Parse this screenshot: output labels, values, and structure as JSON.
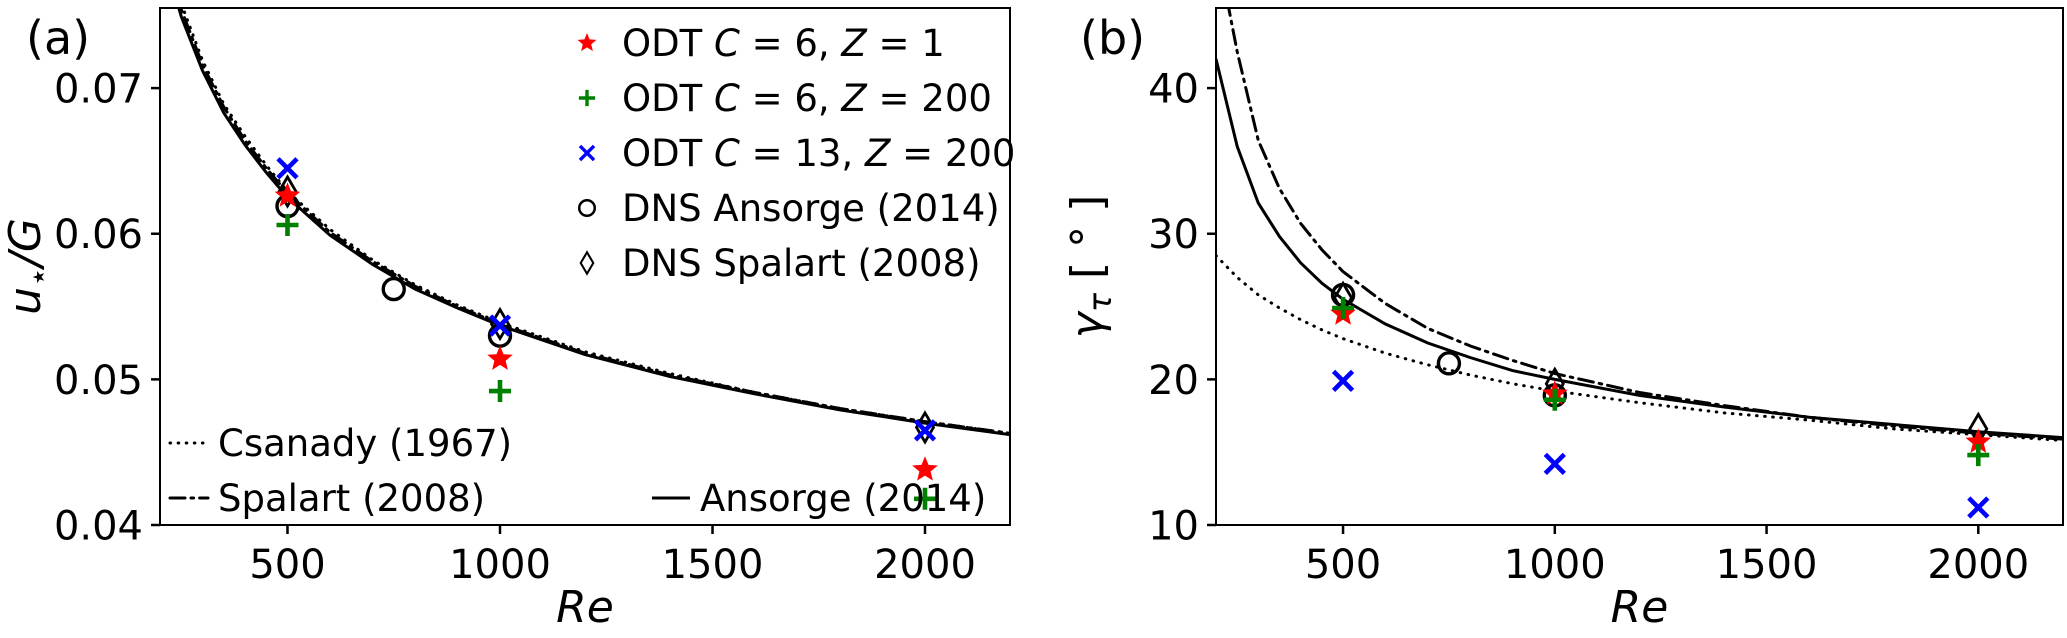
{
  "figure": {
    "background": "#ffffff",
    "panel_tags": {
      "a": "(a)",
      "b": "(b)"
    }
  },
  "colors": {
    "red": "#ff0000",
    "green": "#008000",
    "blue": "#0000ff",
    "black": "#000000"
  },
  "chart_data": [
    {
      "type": "scatter",
      "tag": "(a)",
      "xlabel": "Re",
      "xlabel_parts": [
        [
          "Re",
          "i"
        ]
      ],
      "ylabel": "u⋆/G",
      "ylabel_parts": [
        [
          "u",
          "i"
        ],
        [
          "⋆",
          "sub"
        ],
        [
          "/G",
          "i"
        ]
      ],
      "xlim": [
        200,
        2200
      ],
      "ylim": [
        0.04,
        0.0755
      ],
      "xticks": [
        [
          500,
          "500"
        ],
        [
          1000,
          "1000"
        ],
        [
          1500,
          "1500"
        ],
        [
          2000,
          "2000"
        ]
      ],
      "yticks": [
        [
          0.04,
          "0.04"
        ],
        [
          0.05,
          "0.05"
        ],
        [
          0.06,
          "0.06"
        ],
        [
          0.07,
          "0.07"
        ]
      ],
      "grid": false,
      "legend_series_position": "upper right",
      "legend_lines_position": "lower left",
      "lines": [
        {
          "label": "Csanady (1967)",
          "label_parts": [
            [
              "Csanady (1967)",
              "n"
            ]
          ],
          "style": "dotted",
          "color": "#000000",
          "points": [
            [
              200,
              0.0811
            ],
            [
              250,
              0.0758
            ],
            [
              300,
              0.0719
            ],
            [
              350,
              0.0689
            ],
            [
              400,
              0.0667
            ],
            [
              450,
              0.0647
            ],
            [
              500,
              0.0629
            ],
            [
              600,
              0.0603
            ],
            [
              700,
              0.0582
            ],
            [
              800,
              0.0565
            ],
            [
              900,
              0.0551
            ],
            [
              1000,
              0.0539
            ],
            [
              1200,
              0.0519
            ],
            [
              1400,
              0.0504
            ],
            [
              1600,
              0.0491
            ],
            [
              1800,
              0.048
            ],
            [
              2000,
              0.0471
            ],
            [
              2200,
              0.0463
            ]
          ]
        },
        {
          "label": "Spalart (2008)",
          "label_parts": [
            [
              "Spalart (2008)",
              "n"
            ]
          ],
          "style": "dashdot",
          "color": "#000000",
          "points": [
            [
              200,
              0.0807
            ],
            [
              250,
              0.0754
            ],
            [
              300,
              0.0716
            ],
            [
              350,
              0.0687
            ],
            [
              400,
              0.0664
            ],
            [
              450,
              0.0645
            ],
            [
              500,
              0.0628
            ],
            [
              600,
              0.0601
            ],
            [
              700,
              0.0581
            ],
            [
              800,
              0.0564
            ],
            [
              900,
              0.055
            ],
            [
              1000,
              0.0538
            ],
            [
              1200,
              0.0518
            ],
            [
              1400,
              0.0503
            ],
            [
              1600,
              0.0491
            ],
            [
              1800,
              0.048
            ],
            [
              2000,
              0.0471
            ],
            [
              2200,
              0.0463
            ]
          ]
        },
        {
          "label": "Ansorge (2014)",
          "label_parts": [
            [
              "Ansorge (2014)",
              "n"
            ]
          ],
          "style": "solid",
          "color": "#000000",
          "points": [
            [
              200,
              0.08
            ],
            [
              250,
              0.0749
            ],
            [
              300,
              0.0712
            ],
            [
              350,
              0.0683
            ],
            [
              400,
              0.0661
            ],
            [
              450,
              0.0642
            ],
            [
              500,
              0.0625
            ],
            [
              600,
              0.0599
            ],
            [
              700,
              0.0579
            ],
            [
              800,
              0.0562
            ],
            [
              900,
              0.0549
            ],
            [
              1000,
              0.0537
            ],
            [
              1200,
              0.0517
            ],
            [
              1400,
              0.0502
            ],
            [
              1600,
              0.049
            ],
            [
              1800,
              0.0479
            ],
            [
              2000,
              0.047
            ],
            [
              2200,
              0.0462
            ]
          ]
        }
      ],
      "series": [
        {
          "label": "ODT C = 6, Z = 1",
          "label_parts": [
            [
              "ODT ",
              "n"
            ],
            [
              "C",
              "i"
            ],
            [
              " = 6, ",
              "n"
            ],
            [
              "Z",
              "i"
            ],
            [
              " = 1",
              "n"
            ]
          ],
          "marker": "star",
          "color": "#ff0000",
          "zorder": 3,
          "points": [
            [
              500,
              0.0626
            ],
            [
              1000,
              0.0514
            ],
            [
              2000,
              0.0438
            ]
          ]
        },
        {
          "label": "ODT C = 6, Z = 200",
          "label_parts": [
            [
              "ODT ",
              "n"
            ],
            [
              "C",
              "i"
            ],
            [
              " = 6, ",
              "n"
            ],
            [
              "Z",
              "i"
            ],
            [
              " = 200",
              "n"
            ]
          ],
          "marker": "plus",
          "color": "#008000",
          "zorder": 4,
          "points": [
            [
              500,
              0.0606
            ],
            [
              1000,
              0.0492
            ],
            [
              2000,
              0.0418
            ]
          ]
        },
        {
          "label": "ODT C = 13, Z = 200",
          "label_parts": [
            [
              "ODT ",
              "n"
            ],
            [
              "C",
              "i"
            ],
            [
              " = 13, ",
              "n"
            ],
            [
              "Z",
              "i"
            ],
            [
              " = 200",
              "n"
            ]
          ],
          "marker": "x",
          "color": "#0000ff",
          "zorder": 5,
          "points": [
            [
              500,
              0.0645
            ],
            [
              1000,
              0.0537
            ],
            [
              2000,
              0.0465
            ]
          ]
        },
        {
          "label": "DNS Ansorge (2014)",
          "label_parts": [
            [
              "DNS Ansorge (2014)",
              "n"
            ]
          ],
          "marker": "circle",
          "color": "#000000",
          "zorder": 1,
          "points": [
            [
              500,
              0.0619
            ],
            [
              750,
              0.0562
            ],
            [
              1000,
              0.053
            ]
          ]
        },
        {
          "label": "DNS Spalart (2008)",
          "label_parts": [
            [
              "DNS Spalart (2008)",
              "n"
            ]
          ],
          "marker": "diamond",
          "color": "#000000",
          "zorder": 2,
          "points": [
            [
              500,
              0.0629
            ],
            [
              1000,
              0.0538
            ],
            [
              2000,
              0.0467
            ]
          ]
        }
      ]
    },
    {
      "type": "scatter",
      "tag": "(b)",
      "xlabel": "Re",
      "xlabel_parts": [
        [
          "Re",
          "i"
        ]
      ],
      "ylabel": "γτ [ ° ]",
      "ylabel_parts": [
        [
          "γ",
          "i"
        ],
        [
          "τ",
          "isub"
        ],
        [
          " [ ° ]",
          "n"
        ]
      ],
      "xlim": [
        200,
        2200
      ],
      "ylim": [
        10,
        45.5
      ],
      "xticks": [
        [
          500,
          "500"
        ],
        [
          1000,
          "1000"
        ],
        [
          1500,
          "1500"
        ],
        [
          2000,
          "2000"
        ]
      ],
      "yticks": [
        [
          10,
          "10"
        ],
        [
          20,
          "20"
        ],
        [
          30,
          "30"
        ],
        [
          40,
          "40"
        ]
      ],
      "grid": false,
      "legend_series_position": "none",
      "legend_lines_position": "none",
      "lines": [
        {
          "label": "Csanady (1967)",
          "label_parts": [
            [
              "Csanady (1967)",
              "n"
            ]
          ],
          "style": "dotted",
          "color": "#000000",
          "points": [
            [
              200,
              28.5
            ],
            [
              250,
              27.0
            ],
            [
              300,
              25.8
            ],
            [
              350,
              24.9
            ],
            [
              400,
              24.1
            ],
            [
              450,
              23.4
            ],
            [
              500,
              22.8
            ],
            [
              600,
              21.8
            ],
            [
              700,
              21.0
            ],
            [
              800,
              20.3
            ],
            [
              900,
              19.7
            ],
            [
              1000,
              19.2
            ],
            [
              1200,
              18.4
            ],
            [
              1400,
              17.7
            ],
            [
              1600,
              17.2
            ],
            [
              1800,
              16.6
            ],
            [
              2000,
              16.2
            ],
            [
              2200,
              15.8
            ]
          ]
        },
        {
          "label": "Spalart (2008)",
          "label_parts": [
            [
              "Spalart (2008)",
              "n"
            ]
          ],
          "style": "dashdot",
          "color": "#000000",
          "points": [
            [
              200,
              50.0
            ],
            [
              250,
              42.5
            ],
            [
              300,
              36.4
            ],
            [
              350,
              33.1
            ],
            [
              400,
              30.7
            ],
            [
              450,
              28.9
            ],
            [
              500,
              27.4
            ],
            [
              600,
              25.2
            ],
            [
              700,
              23.5
            ],
            [
              800,
              22.3
            ],
            [
              900,
              21.3
            ],
            [
              1000,
              20.4
            ],
            [
              1200,
              19.1
            ],
            [
              1400,
              18.2
            ],
            [
              1600,
              17.4
            ],
            [
              1800,
              16.8
            ],
            [
              2000,
              16.3
            ],
            [
              2200,
              15.9
            ]
          ]
        },
        {
          "label": "Ansorge (2014)",
          "label_parts": [
            [
              "Ansorge (2014)",
              "n"
            ]
          ],
          "style": "solid",
          "color": "#000000",
          "points": [
            [
              200,
              42.0
            ],
            [
              250,
              36.0
            ],
            [
              300,
              32.1
            ],
            [
              350,
              29.8
            ],
            [
              400,
              28.0
            ],
            [
              450,
              26.6
            ],
            [
              500,
              25.5
            ],
            [
              600,
              23.8
            ],
            [
              700,
              22.5
            ],
            [
              800,
              21.5
            ],
            [
              900,
              20.6
            ],
            [
              1000,
              20.0
            ],
            [
              1200,
              18.9
            ],
            [
              1400,
              18.1
            ],
            [
              1600,
              17.4
            ],
            [
              1800,
              16.9
            ],
            [
              2000,
              16.4
            ],
            [
              2200,
              16.0
            ]
          ]
        }
      ],
      "series": [
        {
          "label": "ODT C = 6, Z = 1",
          "label_parts": [
            [
              "ODT ",
              "n"
            ],
            [
              "C",
              "i"
            ],
            [
              " = 6, ",
              "n"
            ],
            [
              "Z",
              "i"
            ],
            [
              " = 1",
              "n"
            ]
          ],
          "marker": "star",
          "color": "#ff0000",
          "zorder": 3,
          "points": [
            [
              500,
              24.5
            ],
            [
              1000,
              19.0
            ],
            [
              2000,
              15.7
            ]
          ]
        },
        {
          "label": "ODT C = 6, Z = 200",
          "label_parts": [
            [
              "ODT ",
              "n"
            ],
            [
              "C",
              "i"
            ],
            [
              " = 6, ",
              "n"
            ],
            [
              "Z",
              "i"
            ],
            [
              " = 200",
              "n"
            ]
          ],
          "marker": "plus",
          "color": "#008000",
          "zorder": 4,
          "points": [
            [
              500,
              24.9
            ],
            [
              1000,
              18.6
            ],
            [
              2000,
              14.8
            ]
          ]
        },
        {
          "label": "ODT C = 13, Z = 200",
          "label_parts": [
            [
              "ODT ",
              "n"
            ],
            [
              "C",
              "i"
            ],
            [
              " = 13, ",
              "n"
            ],
            [
              "Z",
              "i"
            ],
            [
              " = 200",
              "n"
            ]
          ],
          "marker": "x",
          "color": "#0000ff",
          "zorder": 5,
          "points": [
            [
              500,
              19.9
            ],
            [
              1000,
              14.2
            ],
            [
              2000,
              11.2
            ]
          ]
        },
        {
          "label": "DNS Ansorge (2014)",
          "label_parts": [
            [
              "DNS Ansorge (2014)",
              "n"
            ]
          ],
          "marker": "circle",
          "color": "#000000",
          "zorder": 1,
          "points": [
            [
              500,
              25.8
            ],
            [
              750,
              21.1
            ],
            [
              1000,
              18.9
            ]
          ]
        },
        {
          "label": "DNS Spalart (2008)",
          "label_parts": [
            [
              "DNS Spalart (2008)",
              "n"
            ]
          ],
          "marker": "diamond",
          "color": "#000000",
          "zorder": 2,
          "points": [
            [
              500,
              25.6
            ],
            [
              1000,
              19.7
            ],
            [
              2000,
              16.6
            ]
          ]
        }
      ]
    }
  ]
}
